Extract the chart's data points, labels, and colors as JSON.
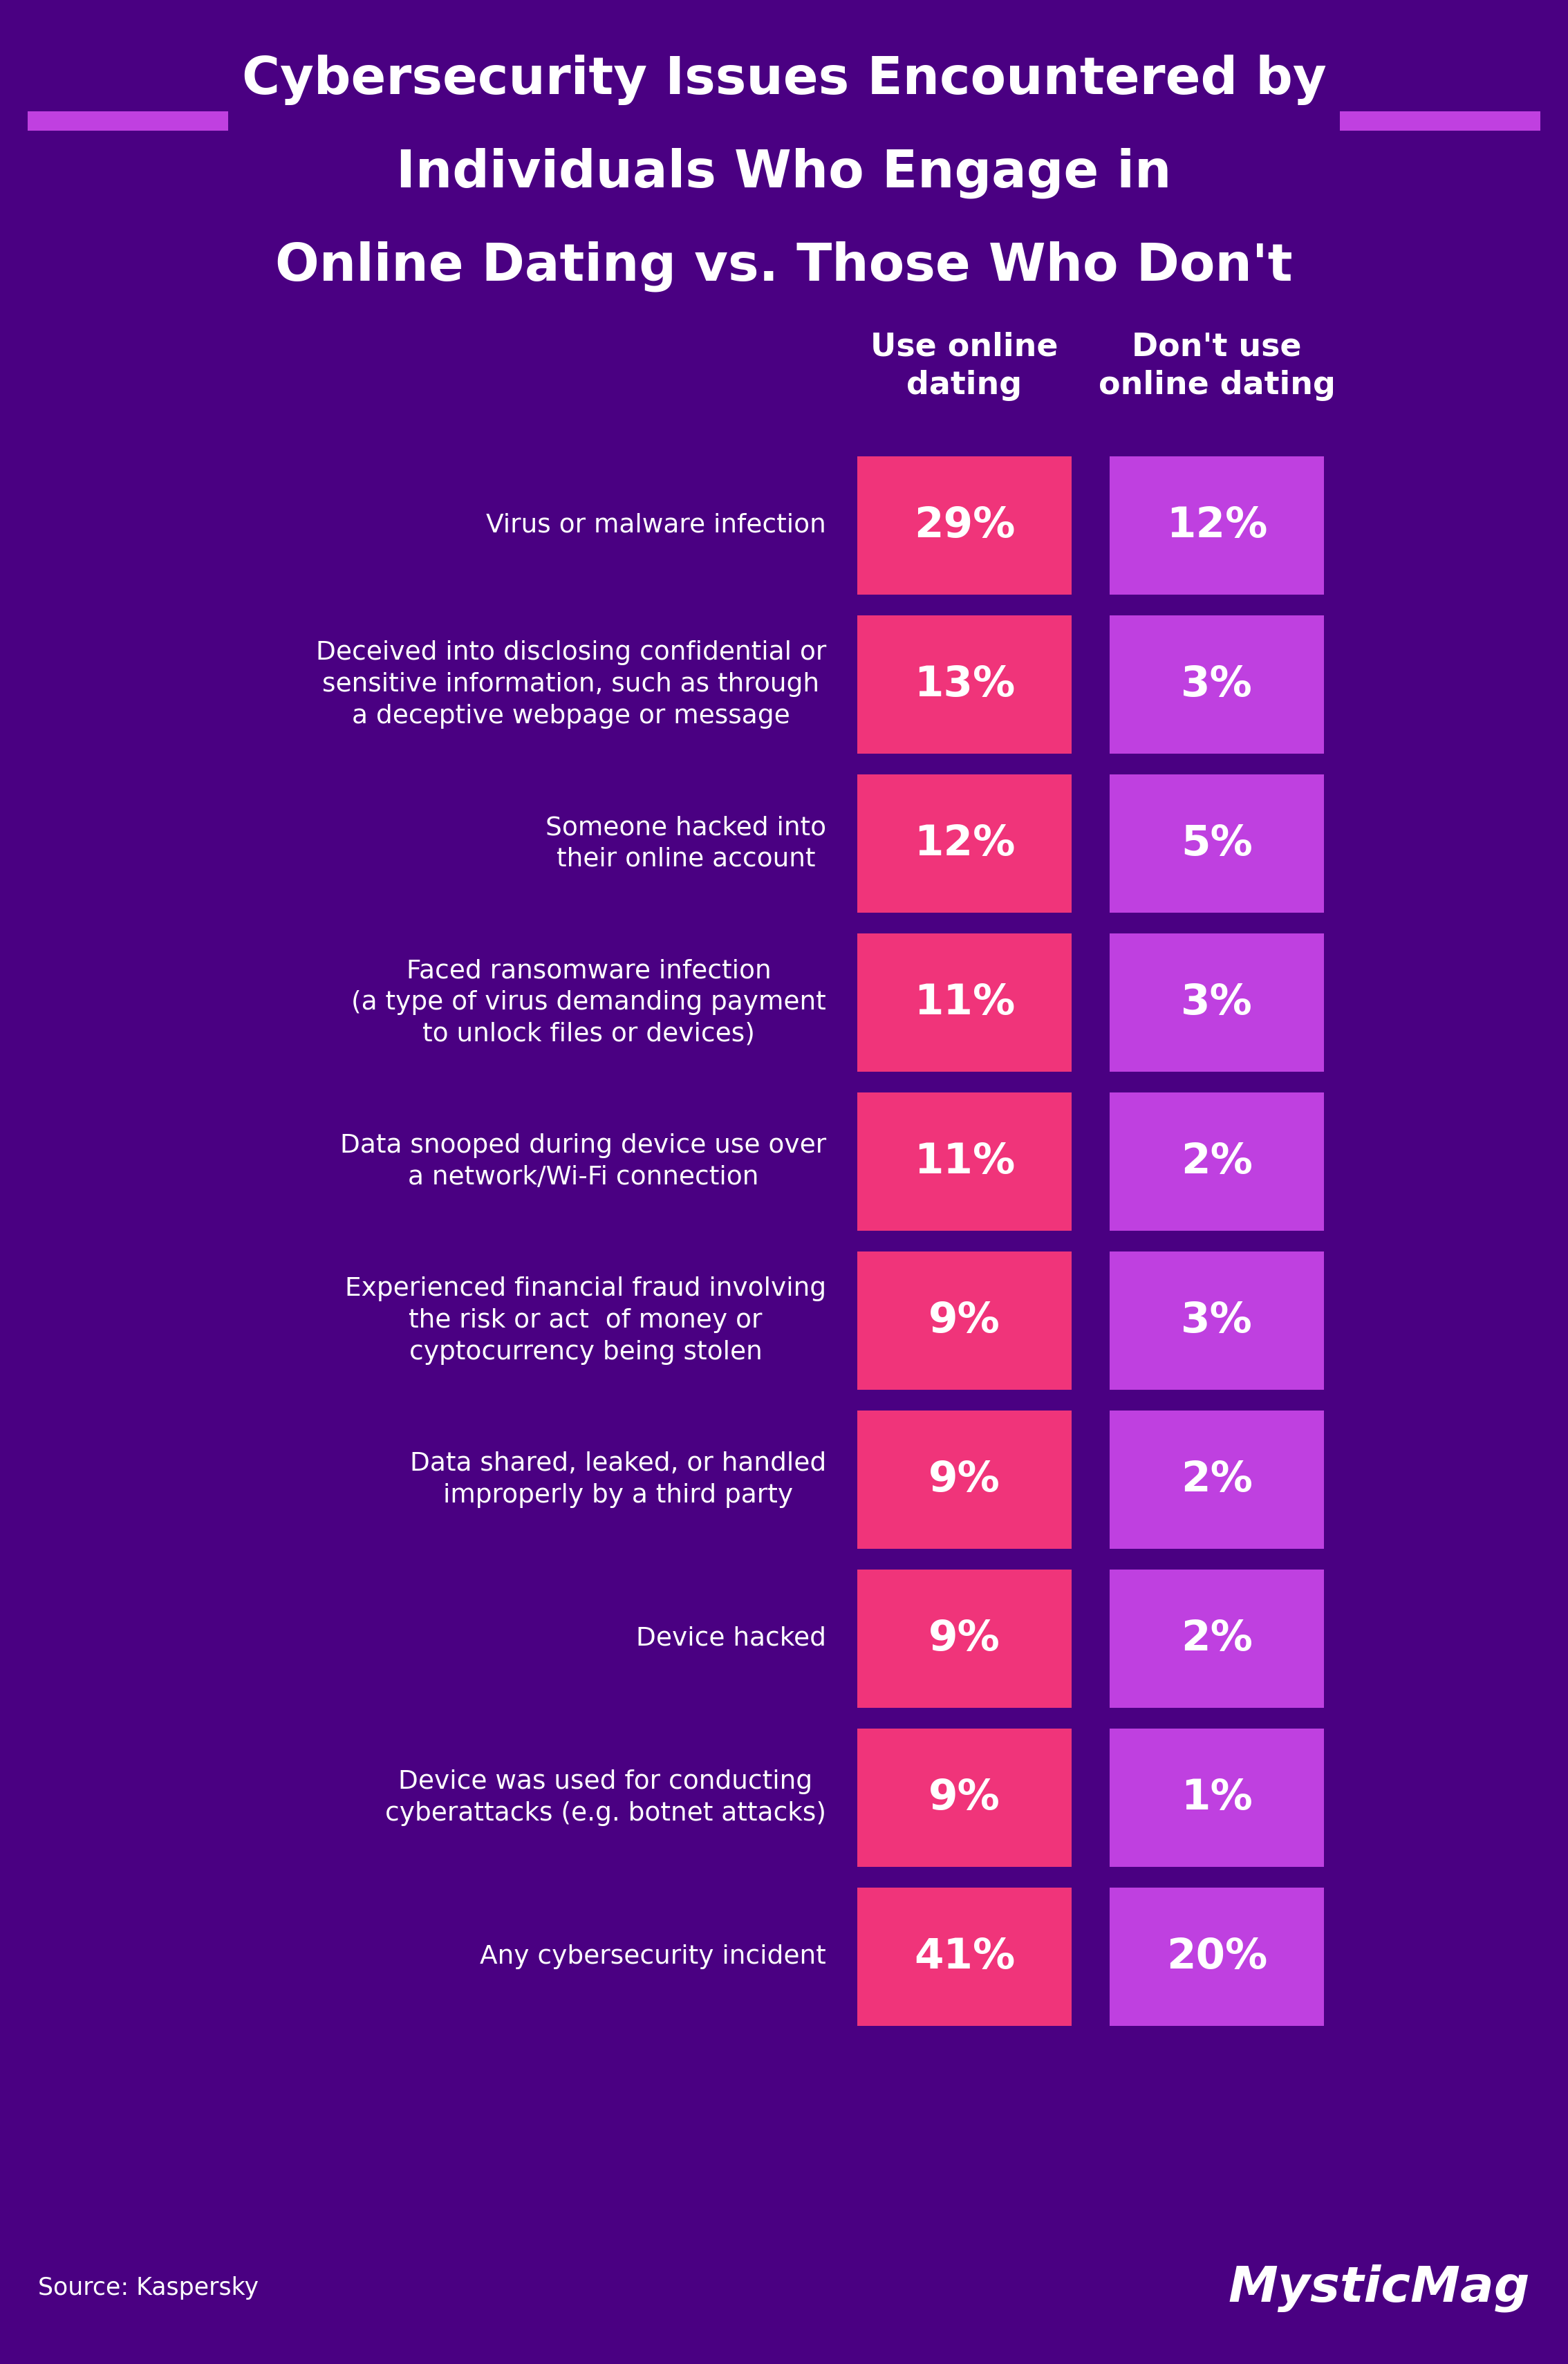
{
  "title_line1": "Cybersecurity Issues Encountered by",
  "title_line2": "Individuals Who Engage in",
  "title_line3": "Online Dating vs. Those Who Don't",
  "col1_header": "Use online\ndating",
  "col2_header": "Don't use\nonline dating",
  "rows": [
    {
      "label": "Virus or malware infection",
      "val1": "29%",
      "val2": "12%"
    },
    {
      "label": "Deceived into disclosing confidential or\nsensitive information, such as through\na deceptive webpage or message",
      "val1": "13%",
      "val2": "3%"
    },
    {
      "label": "Someone hacked into\ntheir online account",
      "val1": "12%",
      "val2": "5%"
    },
    {
      "label": "Faced ransomware infection\n(a type of virus demanding payment\nto unlock files or devices)",
      "val1": "11%",
      "val2": "3%"
    },
    {
      "label": "Data snooped during device use over\na network/Wi-Fi connection",
      "val1": "11%",
      "val2": "2%"
    },
    {
      "label": "Experienced financial fraud involving\nthe risk or act  of money or\ncyptocurrency being stolen",
      "val1": "9%",
      "val2": "3%"
    },
    {
      "label": "Data shared, leaked, or handled\nimproperly by a third party",
      "val1": "9%",
      "val2": "2%"
    },
    {
      "label": "Device hacked",
      "val1": "9%",
      "val2": "2%"
    },
    {
      "label": "Device was used for conducting\ncyberattacks (e.g. botnet attacks)",
      "val1": "9%",
      "val2": "1%"
    },
    {
      "label": "Any cybersecurity incident",
      "val1": "41%",
      "val2": "20%"
    }
  ],
  "bg_color": "#4a0082",
  "cell1_color": "#f0347a",
  "cell2_color": "#bf40e0",
  "text_color": "#ffffff",
  "deco_line_color": "#c040e0",
  "source_text": "Source: Kaspersky",
  "brand_text": "MysticMag",
  "title_fontsize": 54,
  "header_fontsize": 33,
  "label_fontsize": 27,
  "cell_val_fontsize": 44,
  "footer_fontsize": 25,
  "brand_fontsize": 52
}
